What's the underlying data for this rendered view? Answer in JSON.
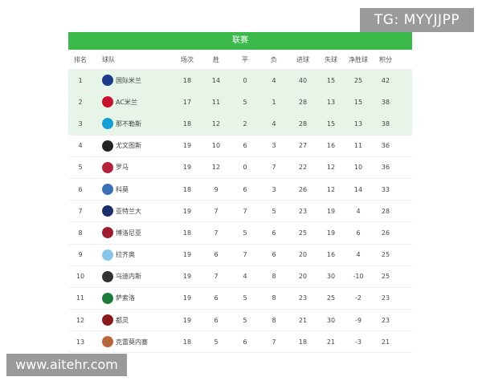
{
  "watermarks": {
    "top": "TG: MYYJJPP",
    "bottom": "www.aitehr.com"
  },
  "table": {
    "title": "联赛",
    "headers": {
      "rank": "排名",
      "team": "球队",
      "played": "场次",
      "won": "胜",
      "drawn": "平",
      "lost": "负",
      "goals_for": "进球",
      "goals_against": "失球",
      "goal_diff": "净胜球",
      "points": "积分"
    },
    "rows": [
      {
        "rank": "1",
        "team": "国际米兰",
        "played": "18",
        "won": "14",
        "drawn": "0",
        "lost": "4",
        "gf": "40",
        "ga": "15",
        "gd": "25",
        "pts": "42",
        "logo_color": "#1b3c8c",
        "icon": "inter-logo-icon"
      },
      {
        "rank": "2",
        "team": "AC米兰",
        "played": "17",
        "won": "11",
        "drawn": "5",
        "lost": "1",
        "gf": "28",
        "ga": "13",
        "gd": "15",
        "pts": "38",
        "logo_color": "#c8102e",
        "icon": "milan-logo-icon"
      },
      {
        "rank": "3",
        "team": "那不勒斯",
        "played": "18",
        "won": "12",
        "drawn": "2",
        "lost": "4",
        "gf": "28",
        "ga": "15",
        "gd": "13",
        "pts": "38",
        "logo_color": "#12a0d7",
        "icon": "napoli-logo-icon"
      },
      {
        "rank": "4",
        "team": "尤文图斯",
        "played": "19",
        "won": "10",
        "drawn": "6",
        "lost": "3",
        "gf": "27",
        "ga": "16",
        "gd": "11",
        "pts": "36",
        "logo_color": "#222222",
        "icon": "juventus-logo-icon"
      },
      {
        "rank": "5",
        "team": "罗马",
        "played": "19",
        "won": "12",
        "drawn": "0",
        "lost": "7",
        "gf": "22",
        "ga": "12",
        "gd": "10",
        "pts": "36",
        "logo_color": "#b5203a",
        "icon": "roma-logo-icon"
      },
      {
        "rank": "6",
        "team": "科莫",
        "played": "18",
        "won": "9",
        "drawn": "6",
        "lost": "3",
        "gf": "26",
        "ga": "12",
        "gd": "14",
        "pts": "33",
        "logo_color": "#3b6fb6",
        "icon": "como-logo-icon"
      },
      {
        "rank": "7",
        "team": "亚特兰大",
        "played": "19",
        "won": "7",
        "drawn": "7",
        "lost": "5",
        "gf": "23",
        "ga": "19",
        "gd": "4",
        "pts": "28",
        "logo_color": "#1a2f6b",
        "icon": "atalanta-logo-icon"
      },
      {
        "rank": "8",
        "team": "博洛尼亚",
        "played": "18",
        "won": "7",
        "drawn": "5",
        "lost": "6",
        "gf": "25",
        "ga": "19",
        "gd": "6",
        "pts": "26",
        "logo_color": "#9c1b2e",
        "icon": "bologna-logo-icon"
      },
      {
        "rank": "9",
        "team": "拉齐奥",
        "played": "19",
        "won": "6",
        "drawn": "7",
        "lost": "6",
        "gf": "20",
        "ga": "16",
        "gd": "4",
        "pts": "25",
        "logo_color": "#87c6e8",
        "icon": "lazio-logo-icon"
      },
      {
        "rank": "10",
        "team": "乌迪内斯",
        "played": "19",
        "won": "7",
        "drawn": "4",
        "lost": "8",
        "gf": "20",
        "ga": "30",
        "gd": "-10",
        "pts": "25",
        "logo_color": "#333333",
        "icon": "udinese-logo-icon"
      },
      {
        "rank": "11",
        "team": "萨索洛",
        "played": "19",
        "won": "6",
        "drawn": "5",
        "lost": "8",
        "gf": "23",
        "ga": "25",
        "gd": "-2",
        "pts": "23",
        "logo_color": "#1e7a3c",
        "icon": "sassuolo-logo-icon"
      },
      {
        "rank": "12",
        "team": "都灵",
        "played": "19",
        "won": "6",
        "drawn": "5",
        "lost": "8",
        "gf": "21",
        "ga": "30",
        "gd": "-9",
        "pts": "23",
        "logo_color": "#8b1a1a",
        "icon": "torino-logo-icon"
      },
      {
        "rank": "13",
        "team": "克雷莫内塞",
        "played": "18",
        "won": "5",
        "drawn": "6",
        "lost": "7",
        "gf": "18",
        "ga": "21",
        "gd": "-3",
        "pts": "21",
        "logo_color": "#b8673a",
        "icon": "cremonese-logo-icon"
      }
    ]
  }
}
